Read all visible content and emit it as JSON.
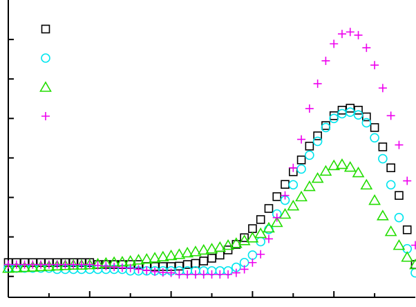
{
  "chart_data": {
    "type": "scatter",
    "x": [
      0,
      0.1,
      0.2,
      0.3,
      0.4,
      0.5,
      0.6,
      0.7,
      0.8,
      0.9,
      1,
      1.1,
      1.2,
      1.3,
      1.4,
      1.5,
      1.6,
      1.7,
      1.8,
      1.9,
      2,
      2.1,
      2.2,
      2.3,
      2.4,
      2.5,
      2.6,
      2.7,
      2.8,
      2.9,
      3,
      3.1,
      3.2,
      3.3,
      3.4,
      3.5,
      3.6,
      3.7,
      3.8,
      3.9,
      4,
      4.1,
      4.2,
      4.3,
      4.4,
      4.5,
      4.6,
      4.7,
      4.8,
      4.9,
      5
    ],
    "series": [
      {
        "color": "#000000",
        "marker": "square",
        "values": [
          0.35,
          0.35,
          0.35,
          0.35,
          0.35,
          0.35,
          0.35,
          0.35,
          0.35,
          0.35,
          0.35,
          0.3,
          0.3,
          0.3,
          0.3,
          0.3,
          0.3,
          0.25,
          0.25,
          0.25,
          0.25,
          0.26,
          0.3,
          0.33,
          0.39,
          0.46,
          0.54,
          0.67,
          0.81,
          0.98,
          1.21,
          1.44,
          1.72,
          2.02,
          2.33,
          2.65,
          2.95,
          3.3,
          3.56,
          3.82,
          4.07,
          4.21,
          4.26,
          4.21,
          4.04,
          3.77,
          3.28,
          2.75,
          2.05,
          1.18,
          0.3
        ]
      },
      {
        "color": "#00e5ee",
        "marker": "circle",
        "values": [
          0.21,
          0.21,
          0.21,
          0.21,
          0.21,
          0.21,
          0.18,
          0.18,
          0.18,
          0.18,
          0.18,
          0.18,
          0.18,
          0.18,
          0.18,
          0.14,
          0.14,
          0.14,
          0.14,
          0.14,
          0.14,
          0.14,
          0.14,
          0.14,
          0.14,
          0.14,
          0.14,
          0.14,
          0.23,
          0.35,
          0.54,
          0.88,
          1.19,
          1.58,
          1.93,
          2.32,
          2.72,
          3.07,
          3.42,
          3.77,
          4.0,
          4.12,
          4.16,
          4.09,
          3.89,
          3.51,
          2.98,
          2.32,
          1.49,
          0.7,
          0.09
        ]
      },
      {
        "color": "#22dd00",
        "marker": "triangle",
        "values": [
          0.21,
          0.22,
          0.23,
          0.24,
          0.25,
          0.26,
          0.27,
          0.28,
          0.29,
          0.29,
          0.3,
          0.32,
          0.34,
          0.36,
          0.37,
          0.39,
          0.42,
          0.44,
          0.47,
          0.5,
          0.53,
          0.56,
          0.6,
          0.63,
          0.67,
          0.7,
          0.74,
          0.79,
          0.84,
          0.91,
          0.98,
          1.09,
          1.23,
          1.37,
          1.58,
          1.79,
          2.02,
          2.28,
          2.49,
          2.67,
          2.81,
          2.84,
          2.77,
          2.63,
          2.32,
          1.93,
          1.54,
          1.14,
          0.79,
          0.49,
          0.3
        ]
      },
      {
        "color": "#ee00ee",
        "marker": "plus",
        "values": [
          0.3,
          0.3,
          0.3,
          0.3,
          0.3,
          0.3,
          0.3,
          0.3,
          0.3,
          0.3,
          0.3,
          0.28,
          0.26,
          0.24,
          0.22,
          0.21,
          0.18,
          0.15,
          0.12,
          0.1,
          0.09,
          0.05,
          0.05,
          0.05,
          0.05,
          0.05,
          0.05,
          0.05,
          0.09,
          0.18,
          0.35,
          0.56,
          0.95,
          1.49,
          2.05,
          2.75,
          3.47,
          4.25,
          4.88,
          5.46,
          5.89,
          6.14,
          6.19,
          6.11,
          5.79,
          5.35,
          4.77,
          4.07,
          3.33,
          2.42,
          0.79
        ]
      }
    ],
    "xlim": [
      0,
      5
    ],
    "ylim": [
      -0.53,
      7.0
    ],
    "xticks": [
      0.5,
      1,
      1.5,
      2,
      2.5,
      3,
      3.5,
      4,
      4.5
    ],
    "yticks": [
      0,
      1,
      2,
      3,
      4,
      5,
      6
    ],
    "legend": "upper left"
  }
}
